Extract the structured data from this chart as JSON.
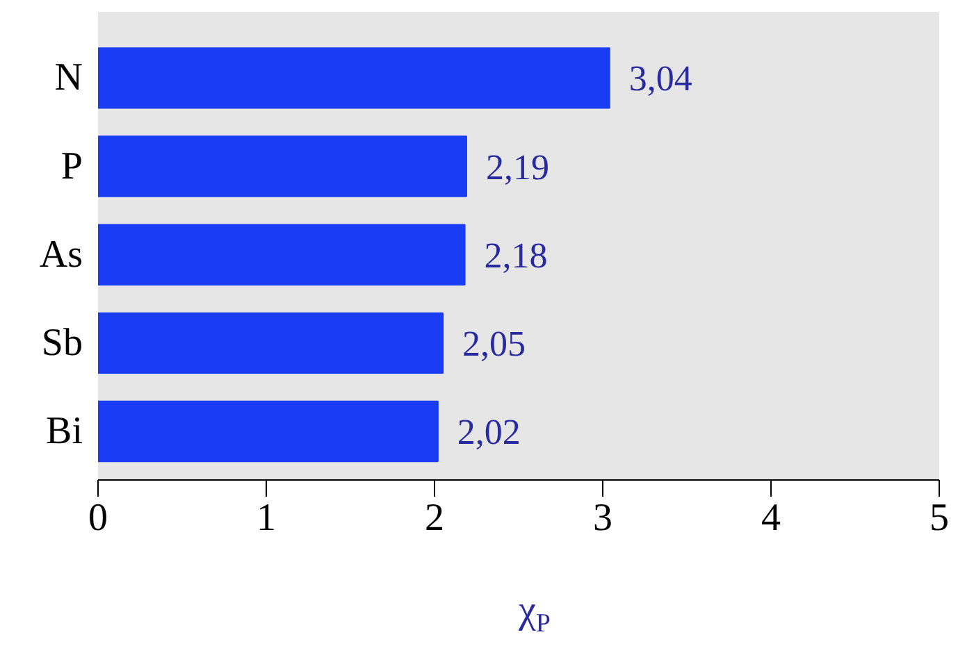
{
  "chart_data": {
    "type": "bar",
    "orientation": "horizontal",
    "categories": [
      "N",
      "P",
      "As",
      "Sb",
      "Bi"
    ],
    "values": [
      3.04,
      2.19,
      2.18,
      2.05,
      2.02
    ],
    "value_labels": [
      "3,04",
      "2,19",
      "2,18",
      "2,05",
      "2,02"
    ],
    "color": "#1a3cf5",
    "xlim": [
      0,
      5
    ],
    "xticks": [
      0,
      1,
      2,
      3,
      4,
      5
    ],
    "xlabel": "χ$_{P}$"
  }
}
